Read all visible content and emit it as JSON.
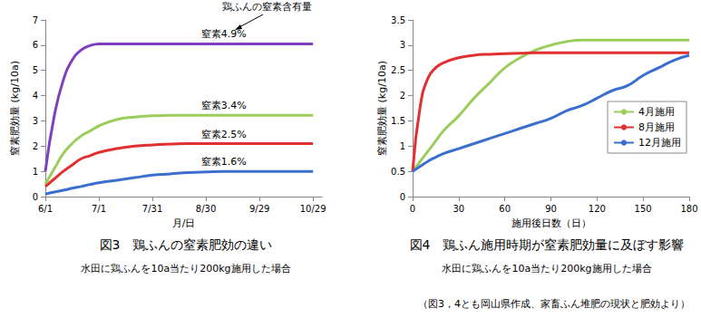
{
  "chart_data": [
    {
      "type": "line",
      "title": "図3　鶏ふんの窒素肥効の違い",
      "subtitle": "水田に鶏ふんを10a当たり200kg施用した場合",
      "xlabel": "月/日",
      "ylabel": "窒素肥効量 (kg/10a)",
      "annotations": [
        "鶏ふんの窒素含有量"
      ],
      "x": [
        0,
        5,
        10,
        15,
        20,
        25,
        30,
        40,
        50,
        60,
        70,
        80,
        90,
        100,
        110,
        120,
        130,
        140,
        150
      ],
      "series": [
        {
          "name": "窒素4.9%",
          "color": "#7f3fbf",
          "values": [
            1.0,
            3.2,
            4.6,
            5.4,
            5.8,
            5.98,
            6.05,
            6.05,
            6.05,
            6.05,
            6.05,
            6.05,
            6.05,
            6.05,
            6.05,
            6.05,
            6.05,
            6.05,
            6.05
          ]
        },
        {
          "name": "窒素3.4%",
          "color": "#9acd5a",
          "values": [
            0.5,
            1.1,
            1.7,
            2.1,
            2.4,
            2.6,
            2.8,
            3.05,
            3.15,
            3.2,
            3.22,
            3.22,
            3.22,
            3.22,
            3.22,
            3.22,
            3.22,
            3.22,
            3.22
          ]
        },
        {
          "name": "窒素2.5%",
          "color": "#e03030",
          "values": [
            0.4,
            0.7,
            1.0,
            1.25,
            1.5,
            1.62,
            1.75,
            1.9,
            2.0,
            2.05,
            2.08,
            2.1,
            2.1,
            2.1,
            2.1,
            2.1,
            2.1,
            2.1,
            2.1
          ]
        },
        {
          "name": "窒素1.6%",
          "color": "#3a6fd0",
          "values": [
            0.1,
            0.18,
            0.25,
            0.33,
            0.4,
            0.48,
            0.55,
            0.65,
            0.75,
            0.85,
            0.9,
            0.95,
            0.98,
            1.0,
            1.0,
            1.0,
            1.0,
            1.0,
            1.0
          ]
        }
      ],
      "xlim": [
        0,
        155
      ],
      "xticks": [
        {
          "value": 0,
          "label": "6/1"
        },
        {
          "value": 30,
          "label": "7/1"
        },
        {
          "value": 60,
          "label": "7/31"
        },
        {
          "value": 90,
          "label": "8/30"
        },
        {
          "value": 120,
          "label": "9/29"
        },
        {
          "value": 150,
          "label": "10/29"
        }
      ],
      "ylim": [
        0,
        7
      ],
      "yticks": [
        0,
        1,
        2,
        3,
        4,
        5,
        6,
        7
      ],
      "grid": false
    },
    {
      "type": "line",
      "title": "図4　鶏ふん施用時期が窒素肥効量に及ぼす影響",
      "subtitle": "水田に鶏ふんを10a当たり200kg施用した場合",
      "xlabel": "施用後日数（日）",
      "ylabel": "窒素肥効量 (kg/10a)",
      "annotations": [
        "（図3，4とも岡山県作成、家畜ふん堆肥の現状と肥効より）"
      ],
      "x": [
        0,
        5,
        10,
        15,
        20,
        30,
        40,
        50,
        60,
        70,
        80,
        90,
        100,
        110,
        120,
        130,
        140,
        150,
        160,
        170,
        180
      ],
      "series": [
        {
          "name": "4月施用",
          "color": "#9acd5a",
          "values": [
            0.5,
            0.7,
            0.9,
            1.1,
            1.3,
            1.6,
            1.95,
            2.25,
            2.55,
            2.75,
            2.9,
            3.0,
            3.07,
            3.1,
            3.1,
            3.1,
            3.1,
            3.1,
            3.1,
            3.1,
            3.1
          ]
        },
        {
          "name": "8月施用",
          "color": "#e03030",
          "values": [
            0.5,
            1.8,
            2.35,
            2.55,
            2.65,
            2.75,
            2.8,
            2.82,
            2.83,
            2.84,
            2.85,
            2.85,
            2.85,
            2.85,
            2.85,
            2.85,
            2.85,
            2.85,
            2.85,
            2.85,
            2.85
          ]
        },
        {
          "name": "12月施用",
          "color": "#3a6fd0",
          "values": [
            0.5,
            0.6,
            0.7,
            0.78,
            0.85,
            0.95,
            1.05,
            1.15,
            1.25,
            1.35,
            1.45,
            1.55,
            1.7,
            1.8,
            1.95,
            2.1,
            2.2,
            2.4,
            2.55,
            2.7,
            2.8
          ]
        }
      ],
      "xlim": [
        0,
        180
      ],
      "xticks": [
        0,
        30,
        60,
        90,
        120,
        150,
        180
      ],
      "ylim": [
        0,
        3.5
      ],
      "yticks": [
        0,
        0.5,
        1,
        1.5,
        2,
        2.5,
        3,
        3.5
      ],
      "grid": false,
      "legend": "right"
    }
  ]
}
